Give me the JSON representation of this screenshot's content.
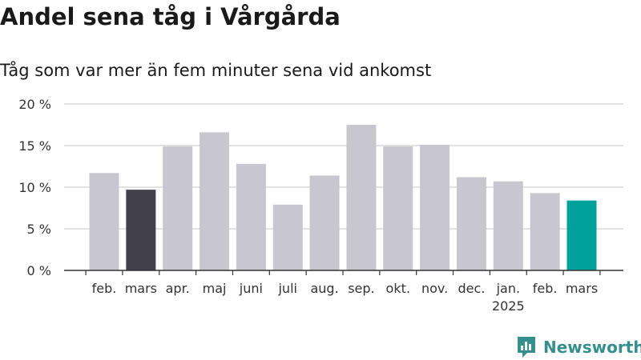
{
  "chart_data": {
    "type": "bar",
    "title": "Andel sena tåg i Vårgårda",
    "subtitle": "Tåg som var mer än fem minuter sena vid ankomst",
    "categories": [
      "feb.",
      "mars",
      "apr.",
      "maj",
      "juni",
      "juli",
      "aug.",
      "sep.",
      "okt.",
      "nov.",
      "dec.",
      "jan.",
      "feb.",
      "mars"
    ],
    "year_label": "2025",
    "year_label_category_index": 11,
    "values": [
      11.7,
      9.7,
      14.9,
      16.6,
      12.8,
      7.9,
      11.4,
      17.5,
      14.9,
      15.1,
      11.2,
      10.7,
      9.3,
      8.4
    ],
    "bar_colors": [
      "#c8c7d0",
      "#41404c",
      "#c8c7d0",
      "#c8c7d0",
      "#c8c7d0",
      "#c8c7d0",
      "#c8c7d0",
      "#c8c7d0",
      "#c8c7d0",
      "#c8c7d0",
      "#c8c7d0",
      "#c8c7d0",
      "#c8c7d0",
      "#00a19a"
    ],
    "ylim": [
      0,
      20
    ],
    "yticks": [
      0,
      5,
      10,
      15,
      20
    ],
    "ytick_labels": [
      "0 %",
      "5 %",
      "10 %",
      "15 %",
      "20 %"
    ],
    "xlabel": "",
    "ylabel": "",
    "grid": true,
    "legend": "none"
  },
  "branding": {
    "name": "Newsworthy",
    "logo_icon": "newsworthy-chart-icon",
    "color": "#35908d"
  }
}
